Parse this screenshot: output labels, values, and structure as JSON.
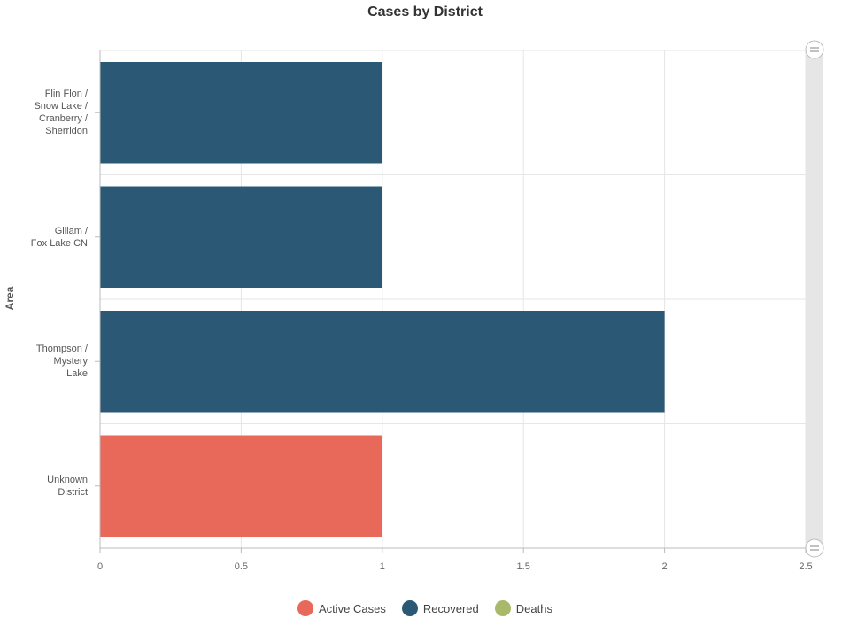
{
  "chart_data": {
    "type": "bar",
    "orientation": "horizontal",
    "title": "Cases by District",
    "ylabel": "Area",
    "xlabel": "",
    "categories": [
      "Flin Flon / Snow Lake / Cranberry / Sherridon",
      "Gillam / Fox Lake CN",
      "Thompson / Mystery Lake",
      "Unknown District"
    ],
    "category_lines": [
      [
        "Flin Flon /",
        "Snow Lake /",
        "Cranberry /",
        "Sherridon"
      ],
      [
        "Gillam /",
        "Fox Lake CN"
      ],
      [
        "Thompson /",
        "Mystery",
        "Lake"
      ],
      [
        "Unknown",
        "District"
      ]
    ],
    "series": [
      {
        "name": "Active Cases",
        "color": "#e8695a",
        "values": [
          0,
          0,
          0,
          1
        ]
      },
      {
        "name": "Recovered",
        "color": "#2a5875",
        "values": [
          1,
          1,
          2,
          0
        ]
      },
      {
        "name": "Deaths",
        "color": "#a9b96a",
        "values": [
          0,
          0,
          0,
          0
        ]
      }
    ],
    "stacked": true,
    "xlim": [
      0,
      2.5
    ],
    "xticks": [
      "0",
      "0.5",
      "1",
      "1.5",
      "2",
      "2.5"
    ],
    "grid": true,
    "legend_position": "bottom"
  }
}
